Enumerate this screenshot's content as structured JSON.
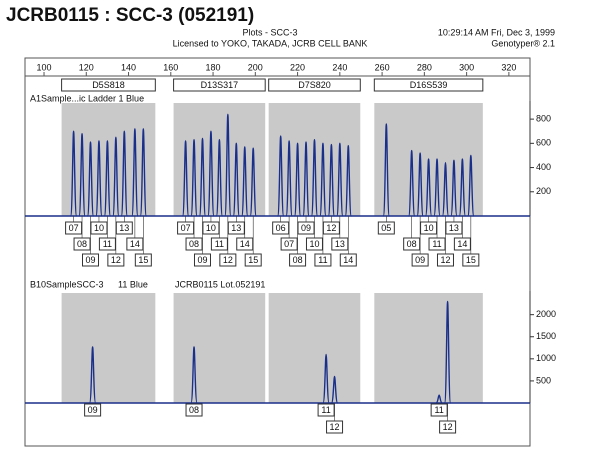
{
  "header": {
    "title": "JCRB0115 : SCC-3 (052191)",
    "plots": "Plots - SCC-3",
    "license": "Licensed to YOKO, TAKADA, JCRB CELL BANK",
    "time": "10:29:14 AM  Fri, Dec 3, 1999",
    "app": "Genotyper® 2.1"
  },
  "xlim": [
    91,
    330
  ],
  "xticks": [
    100,
    120,
    140,
    160,
    180,
    200,
    220,
    240,
    260,
    280,
    300,
    320
  ],
  "markers": [
    {
      "name": "D5S818",
      "panels": [
        {
          "peaks": [
            {
              "x": 114,
              "height": 700,
              "allele": "07"
            },
            {
              "x": 118,
              "height": 680,
              "allele": "08"
            },
            {
              "x": 122,
              "height": 610,
              "allele": "09"
            },
            {
              "x": 126,
              "height": 620,
              "allele": "10"
            },
            {
              "x": 130,
              "height": 620,
              "allele": "11"
            },
            {
              "x": 134,
              "height": 650,
              "allele": "12"
            },
            {
              "x": 138,
              "height": 700,
              "allele": "13"
            },
            {
              "x": 143,
              "height": 720,
              "allele": "14"
            },
            {
              "x": 147,
              "height": 720,
              "allele": "15"
            }
          ]
        },
        {
          "peaks": [
            {
              "x": 123,
              "height": 1270,
              "allele": "09"
            }
          ]
        }
      ]
    },
    {
      "name": "D13S317",
      "panels": [
        {
          "peaks": [
            {
              "x": 167,
              "height": 620,
              "allele": "07"
            },
            {
              "x": 171,
              "height": 630,
              "allele": "08"
            },
            {
              "x": 175,
              "height": 640,
              "allele": "09"
            },
            {
              "x": 179,
              "height": 700,
              "allele": "10"
            },
            {
              "x": 183,
              "height": 630,
              "allele": "11"
            },
            {
              "x": 187,
              "height": 840,
              "allele": "12"
            },
            {
              "x": 191,
              "height": 600,
              "allele": "13"
            },
            {
              "x": 195,
              "height": 570,
              "allele": "14"
            },
            {
              "x": 199,
              "height": 560,
              "allele": "15"
            }
          ]
        },
        {
          "peaks": [
            {
              "x": 171,
              "height": 1270,
              "allele": "08"
            }
          ]
        }
      ]
    },
    {
      "name": "D7S820",
      "panels": [
        {
          "peaks": [
            {
              "x": 212,
              "height": 660,
              "allele": "06"
            },
            {
              "x": 216,
              "height": 620,
              "allele": "07"
            },
            {
              "x": 220,
              "height": 600,
              "allele": "08"
            },
            {
              "x": 224,
              "height": 610,
              "allele": "09"
            },
            {
              "x": 228,
              "height": 630,
              "allele": "10"
            },
            {
              "x": 232,
              "height": 600,
              "allele": "11"
            },
            {
              "x": 236,
              "height": 590,
              "allele": "12"
            },
            {
              "x": 240,
              "height": 600,
              "allele": "13"
            },
            {
              "x": 244,
              "height": 580,
              "allele": "14"
            }
          ]
        },
        {
          "peaks": [
            {
              "x": 233.5,
              "height": 1100,
              "allele": "11"
            },
            {
              "x": 237.5,
              "height": 600,
              "allele": "12"
            }
          ]
        }
      ]
    },
    {
      "name": "D16S539",
      "panels": [
        {
          "peaks": [
            {
              "x": 262,
              "height": 760,
              "allele": "05"
            },
            {
              "x": 274,
              "height": 540,
              "allele": "08"
            },
            {
              "x": 278,
              "height": 520,
              "allele": "09"
            },
            {
              "x": 282,
              "height": 470,
              "allele": "10"
            },
            {
              "x": 286,
              "height": 470,
              "allele": "11"
            },
            {
              "x": 290,
              "height": 440,
              "allele": "12"
            },
            {
              "x": 294,
              "height": 460,
              "allele": "13"
            },
            {
              "x": 298,
              "height": 470,
              "allele": "14"
            },
            {
              "x": 302,
              "height": 500,
              "allele": "15"
            }
          ]
        },
        {
          "peaks": [
            {
              "x": 287,
              "height": 180,
              "allele": "11"
            },
            {
              "x": 291,
              "height": 2300,
              "allele": "12"
            }
          ]
        }
      ]
    }
  ],
  "panels": [
    {
      "labels": [
        "A1Sample...ic Ladder  1 Blue"
      ],
      "ylim": [
        0,
        900
      ],
      "yticks": [
        200,
        400,
        600,
        800
      ]
    },
    {
      "labels": [
        "B10SampleSCC-3",
        "11 Blue",
        "JCRB0115 Lot.052191"
      ],
      "ylim": [
        0,
        2400
      ],
      "yticks": [
        500,
        1000,
        1500,
        2000
      ]
    }
  ]
}
